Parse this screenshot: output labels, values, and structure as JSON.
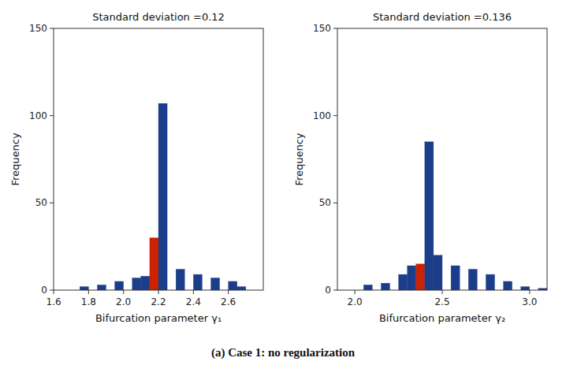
{
  "chart_data": [
    {
      "type": "bar",
      "title": "Standard deviation =0.12",
      "xlabel": "Bifurcation parameter γ₁",
      "ylabel": "Frequency",
      "x": [
        1.65,
        1.75,
        1.85,
        1.95,
        2.05,
        2.1,
        2.15,
        2.2,
        2.3,
        2.4,
        2.5,
        2.6,
        2.65
      ],
      "x_end": [
        1.7,
        1.8,
        1.9,
        2.0,
        2.1,
        2.15,
        2.2,
        2.25,
        2.35,
        2.45,
        2.55,
        2.65,
        2.7
      ],
      "values": [
        0,
        2,
        3,
        5,
        7,
        8,
        30,
        107,
        12,
        9,
        7,
        5,
        2
      ],
      "colors": [
        "#1c3e8a",
        "#1c3e8a",
        "#1c3e8a",
        "#1c3e8a",
        "#1c3e8a",
        "#1c3e8a",
        "#cc2200",
        "#1c3e8a",
        "#1c3e8a",
        "#1c3e8a",
        "#1c3e8a",
        "#1c3e8a",
        "#1c3e8a"
      ],
      "xlim": [
        1.6,
        2.8
      ],
      "ylim": [
        0,
        150
      ],
      "xticks": [
        1.6,
        1.8,
        {
          "value": 2.0,
          "label": "2.0"
        },
        2.2,
        2.4,
        2.6
      ],
      "yticks": [
        0,
        50,
        100,
        150
      ],
      "grid": false
    },
    {
      "type": "bar",
      "title": "Standard deviation =0.136",
      "xlabel": "Bifurcation parameter γ₂",
      "ylabel": "Frequency",
      "x": [
        1.95,
        2.05,
        2.15,
        2.25,
        2.3,
        2.35,
        2.4,
        2.45,
        2.55,
        2.65,
        2.75,
        2.85,
        2.95,
        3.05
      ],
      "x_end": [
        2.0,
        2.1,
        2.2,
        2.3,
        2.35,
        2.4,
        2.45,
        2.5,
        2.6,
        2.7,
        2.8,
        2.9,
        3.0,
        3.1
      ],
      "values": [
        0,
        3,
        4,
        9,
        14,
        15,
        85,
        20,
        14,
        12,
        9,
        5,
        2,
        1
      ],
      "colors": [
        "#1c3e8a",
        "#1c3e8a",
        "#1c3e8a",
        "#1c3e8a",
        "#1c3e8a",
        "#cc2200",
        "#1c3e8a",
        "#1c3e8a",
        "#1c3e8a",
        "#1c3e8a",
        "#1c3e8a",
        "#1c3e8a",
        "#1c3e8a",
        "#1c3e8a"
      ],
      "xlim": [
        1.9,
        3.1
      ],
      "ylim": [
        0,
        150
      ],
      "xticks": [
        {
          "value": 2.0,
          "label": "2.0"
        },
        2.5,
        {
          "value": 3.0,
          "label": "3.0"
        }
      ],
      "yticks": [
        0,
        50,
        100,
        150
      ],
      "grid": false
    }
  ],
  "caption": "(a) Case 1: no regularization"
}
